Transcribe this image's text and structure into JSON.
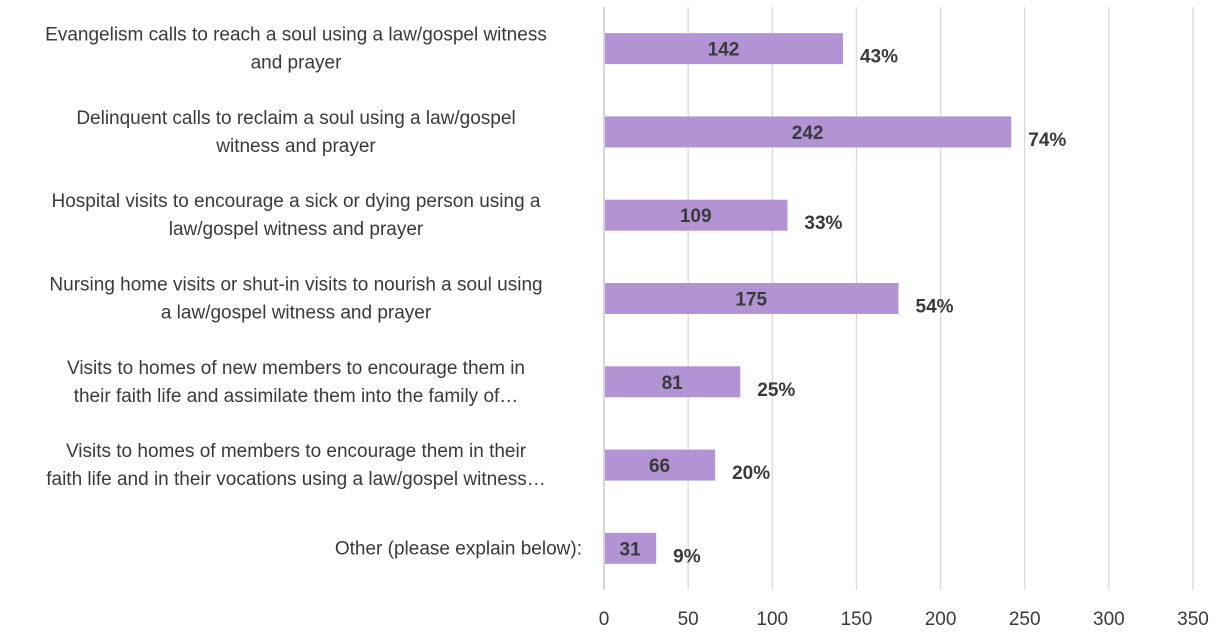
{
  "chart_data": {
    "type": "bar",
    "orientation": "horizontal",
    "categories": [
      [
        "Evangelism calls to reach a soul using a law/gospel witness",
        "and prayer"
      ],
      [
        "Delinquent calls to reclaim a soul using a law/gospel",
        "witness and prayer"
      ],
      [
        "Hospital visits to encourage a sick or dying person using a",
        "law/gospel witness and prayer"
      ],
      [
        "Nursing home visits or shut-in visits to nourish a soul using",
        "a law/gospel witness and prayer"
      ],
      [
        "Visits to homes of new members to encourage them in",
        "their faith life and assimilate them into the family of…"
      ],
      [
        "Visits to homes of members to encourage them in their",
        "faith life and in their vocations using a law/gospel witness…"
      ],
      [
        "Other (please explain below):"
      ]
    ],
    "values": [
      142,
      242,
      109,
      175,
      81,
      66,
      31
    ],
    "percent_labels": [
      "43%",
      "74%",
      "33%",
      "54%",
      "25%",
      "20%",
      "9%"
    ],
    "xlim": [
      0,
      350
    ],
    "xticks": [
      0,
      50,
      100,
      150,
      200,
      250,
      300,
      350
    ],
    "grid": true,
    "bar_color": "#b294d4",
    "title": "",
    "xlabel": "",
    "ylabel": ""
  }
}
